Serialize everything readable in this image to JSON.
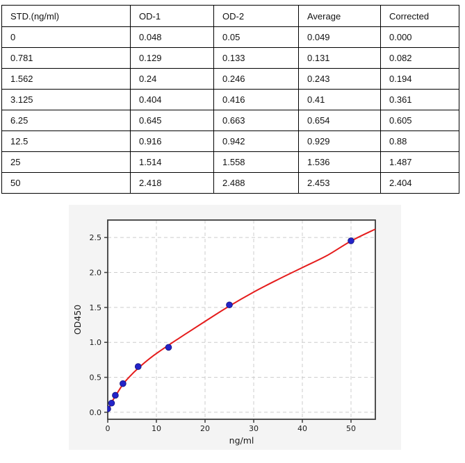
{
  "page": {
    "background": "#ffffff"
  },
  "table": {
    "headers": [
      "STD.(ng/ml)",
      "OD-1",
      "OD-2",
      "Average",
      "Corrected"
    ],
    "rows": [
      [
        "0",
        "0.048",
        "0.05",
        "0.049",
        "0.000"
      ],
      [
        "0.781",
        "0.129",
        "0.133",
        "0.131",
        "0.082"
      ],
      [
        "1.562",
        "0.24",
        "0.246",
        "0.243",
        "0.194"
      ],
      [
        "3.125",
        "0.404",
        "0.416",
        "0.41",
        "0.361"
      ],
      [
        "6.25",
        "0.645",
        "0.663",
        "0.654",
        "0.605"
      ],
      [
        "12.5",
        "0.916",
        "0.942",
        "0.929",
        "0.88"
      ],
      [
        "25",
        "1.514",
        "1.558",
        "1.536",
        "1.487"
      ],
      [
        "50",
        "2.418",
        "2.488",
        "2.453",
        "2.404"
      ]
    ]
  },
  "chart_data": {
    "type": "scatter",
    "title": "",
    "xlabel": "ng/ml",
    "ylabel": "OD450",
    "xlim": [
      0,
      55
    ],
    "ylim": [
      -0.1,
      2.75
    ],
    "x_ticks": [
      0,
      10,
      20,
      30,
      40,
      50
    ],
    "x_tick_labels": [
      "0",
      "10",
      "20",
      "30",
      "40",
      "50"
    ],
    "y_ticks": [
      0.0,
      0.5,
      1.0,
      1.5,
      2.0,
      2.5
    ],
    "y_tick_labels": [
      "0.0",
      "0.5",
      "1.0",
      "1.5",
      "2.0",
      "2.5"
    ],
    "grid": true,
    "legend": "none",
    "series": [
      {
        "name": "fitted-curve",
        "type": "line",
        "color": "#e51c1c",
        "x": [
          0,
          0.4,
          0.781,
          1.562,
          3.125,
          4.5,
          6.25,
          9,
          12.5,
          16,
          20,
          25,
          30,
          35,
          40,
          45,
          50,
          55
        ],
        "y": [
          0.03,
          0.08,
          0.14,
          0.23,
          0.4,
          0.51,
          0.63,
          0.79,
          0.96,
          1.12,
          1.3,
          1.52,
          1.72,
          1.9,
          2.07,
          2.24,
          2.45,
          2.62
        ]
      },
      {
        "name": "standard-points",
        "type": "scatter",
        "color": "#2323c8",
        "edge_color": "#12127a",
        "x": [
          0,
          0.781,
          1.562,
          3.125,
          6.25,
          12.5,
          25,
          50
        ],
        "y": [
          0.049,
          0.131,
          0.243,
          0.41,
          0.654,
          0.929,
          1.536,
          2.453
        ]
      }
    ],
    "styles": {
      "figure_bg": "#f4f4f4",
      "plot_bg": "#ffffff",
      "grid_color": "#cccccc",
      "spine_color": "#3c3c3c",
      "tick_color": "#3c3c3c",
      "tick_label_color": "#1a1a1a"
    }
  }
}
